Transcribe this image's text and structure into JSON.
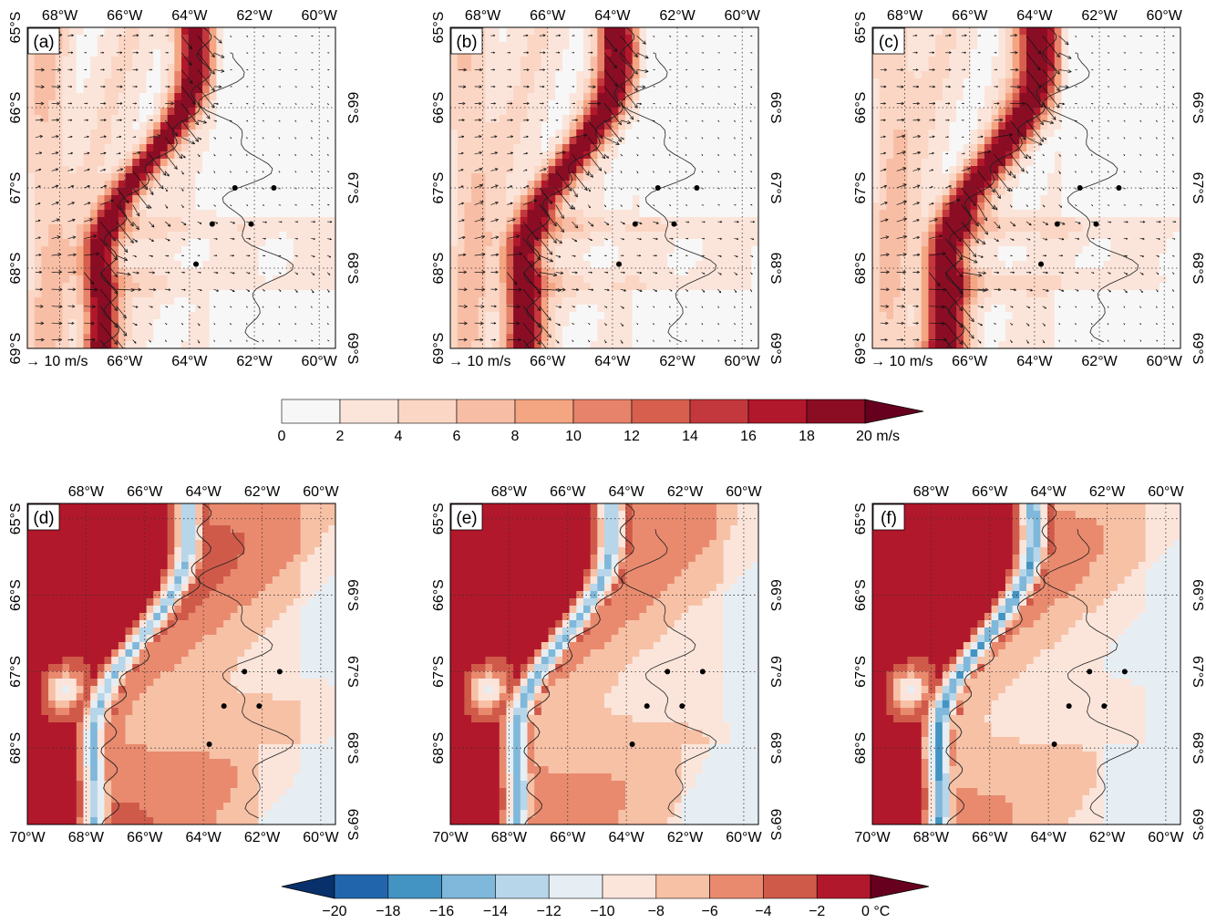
{
  "figure": {
    "wind_panels": [
      "(a)",
      "(b)",
      "(c)"
    ],
    "temp_panels": [
      "(d)",
      "(e)",
      "(f)"
    ],
    "wind_scale_label": "10 m/s",
    "top_lon_labels": [
      "68°W",
      "66°W",
      "64°W",
      "62°W",
      "60°W"
    ],
    "bottom_lon_labels_wind": [
      "66°W",
      "64°W",
      "62°W",
      "60°W"
    ],
    "bottom_lon_labels_temp": [
      "70°W",
      "68°W",
      "66°W",
      "64°W",
      "62°W",
      "60°W"
    ],
    "left_lat_labels_wind": [
      "65°S",
      "66°S",
      "67°S",
      "68°S",
      "69°S"
    ],
    "left_lat_labels_temp": [
      "65°S",
      "66°S",
      "67°S",
      "68°S"
    ],
    "right_lat_labels": [
      "66°S",
      "67°S",
      "68°S",
      "69°S"
    ],
    "stations": [
      [
        -62.6,
        -67.0
      ],
      [
        -61.4,
        -67.0
      ],
      [
        -63.3,
        -67.45
      ],
      [
        -62.1,
        -67.45
      ],
      [
        -63.8,
        -67.95
      ]
    ]
  },
  "chart_data": [
    {
      "type": "heatmap",
      "variable": "wind speed",
      "panels": [
        "(a)",
        "(b)",
        "(c)"
      ],
      "xlim": [
        -69,
        -59.5
      ],
      "ylim": [
        -69,
        -65
      ],
      "x_ticks": [
        -68,
        -66,
        -64,
        -62,
        -60
      ],
      "y_ticks": [
        -65,
        -66,
        -67,
        -68,
        -69
      ],
      "colorbar": {
        "levels": [
          0,
          2,
          4,
          6,
          8,
          10,
          12,
          14,
          16,
          18,
          20
        ],
        "tick_labels": [
          "0",
          "2",
          "4",
          "6",
          "8",
          "10",
          "12",
          "14",
          "16",
          "18",
          "20 m/s"
        ],
        "colors": [
          "#f7f7f7",
          "#fbe5db",
          "#fbd6c4",
          "#f8bea5",
          "#f4a582",
          "#e7836a",
          "#d6604d",
          "#c3383c",
          "#b2182b",
          "#8a0d24"
        ],
        "extend": "max"
      },
      "reference_vector": "10 m/s"
    },
    {
      "type": "heatmap",
      "variable": "temperature",
      "panels": [
        "(d)",
        "(e)",
        "(f)"
      ],
      "xlim": [
        -70,
        -59.5
      ],
      "ylim": [
        -69,
        -64.8
      ],
      "x_ticks": [
        -70,
        -68,
        -66,
        -64,
        -62,
        -60
      ],
      "y_ticks": [
        -65,
        -66,
        -67,
        -68,
        -69
      ],
      "colorbar": {
        "levels": [
          -20,
          -18,
          -16,
          -14,
          -12,
          -10,
          -8,
          -6,
          -4,
          -2,
          0
        ],
        "tick_labels": [
          "−20",
          "−18",
          "−16",
          "−14",
          "−12",
          "−10",
          "−8",
          "−6",
          "−4",
          "−2",
          "0 °C"
        ],
        "colors": [
          "#2166ac",
          "#4393c3",
          "#7fb8da",
          "#b7d6ea",
          "#e6eef3",
          "#fbe5db",
          "#f7c1a6",
          "#e98a6e",
          "#d05a4a",
          "#b2182b"
        ],
        "extend": "both"
      }
    }
  ]
}
